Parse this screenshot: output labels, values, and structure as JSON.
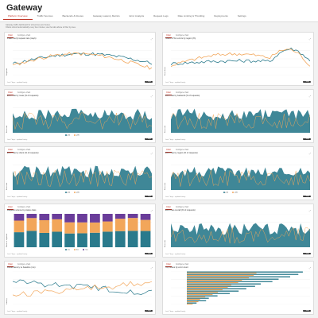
{
  "app": {
    "title": "Gateway"
  },
  "tabs": [
    {
      "label": "Platform Overview",
      "active": true
    },
    {
      "label": "Traffic Sources",
      "active": false
    },
    {
      "label": "Backends & Routes",
      "active": false
    },
    {
      "label": "Gateway Latency Metrics",
      "active": false
    },
    {
      "label": "Error Analysis",
      "active": false
    },
    {
      "label": "Request Logs",
      "active": false
    },
    {
      "label": "Rate Limiting & Throttling",
      "active": false
    },
    {
      "label": "Deployments",
      "active": false
    },
    {
      "label": "Settings",
      "active": false
    }
  ],
  "description": [
    "Gateway traffic dashboard for all services and routes.",
    "Charts refresh automatically every few minutes; use the tabs above to filter by area."
  ],
  "card_tabs": [
    "Chart",
    "Configure chart"
  ],
  "footer_note": "Last 7 days · updated hourly",
  "zoom_label": "7 days",
  "colors": {
    "teal": "#2a7a8c",
    "orange": "#f2a65a",
    "accent": "#c0392b",
    "purple": "#6a3d9a"
  },
  "cards": [
    {
      "id": "c1",
      "title": "Peak hourly request rate (req/s)",
      "ylabel": "Requests",
      "kind": "lines"
    },
    {
      "id": "c2",
      "title": "Share of 5xx errors by region (%)",
      "ylabel": "Error share",
      "kind": "lines"
    },
    {
      "id": "c3",
      "title": "Error rate by route (% of requests)",
      "ylabel": "Error rate",
      "kind": "area",
      "legend": [
        "p50",
        "p95"
      ]
    },
    {
      "id": "c4",
      "title": "Error rate by backend (% of requests)",
      "ylabel": "Error rate",
      "kind": "area",
      "legend": []
    },
    {
      "id": "c5",
      "title": "Error rate by client (% of requests)",
      "ylabel": "Error rate",
      "kind": "area",
      "legend": [
        "p50",
        "p95"
      ]
    },
    {
      "id": "c6",
      "title": "Error rate by region (% of requests)",
      "ylabel": "Error rate",
      "kind": "area",
      "legend": [
        "p50",
        "p95"
      ]
    },
    {
      "id": "c7",
      "title": "Request volume by status class",
      "ylabel": "Share of requests",
      "kind": "stacked",
      "legend": [
        "2xx",
        "4xx",
        "5xx"
      ]
    },
    {
      "id": "c8",
      "title": "Error rate overall (% of requests)",
      "ylabel": "Error rate",
      "kind": "area",
      "legend": []
    },
    {
      "id": "c9",
      "title": "Route latency vs baseline (ms)",
      "ylabel": "Latency",
      "kind": "lines2"
    },
    {
      "id": "c10",
      "title": "Top routes by error count",
      "ylabel": "",
      "kind": "hbar"
    }
  ]
}
